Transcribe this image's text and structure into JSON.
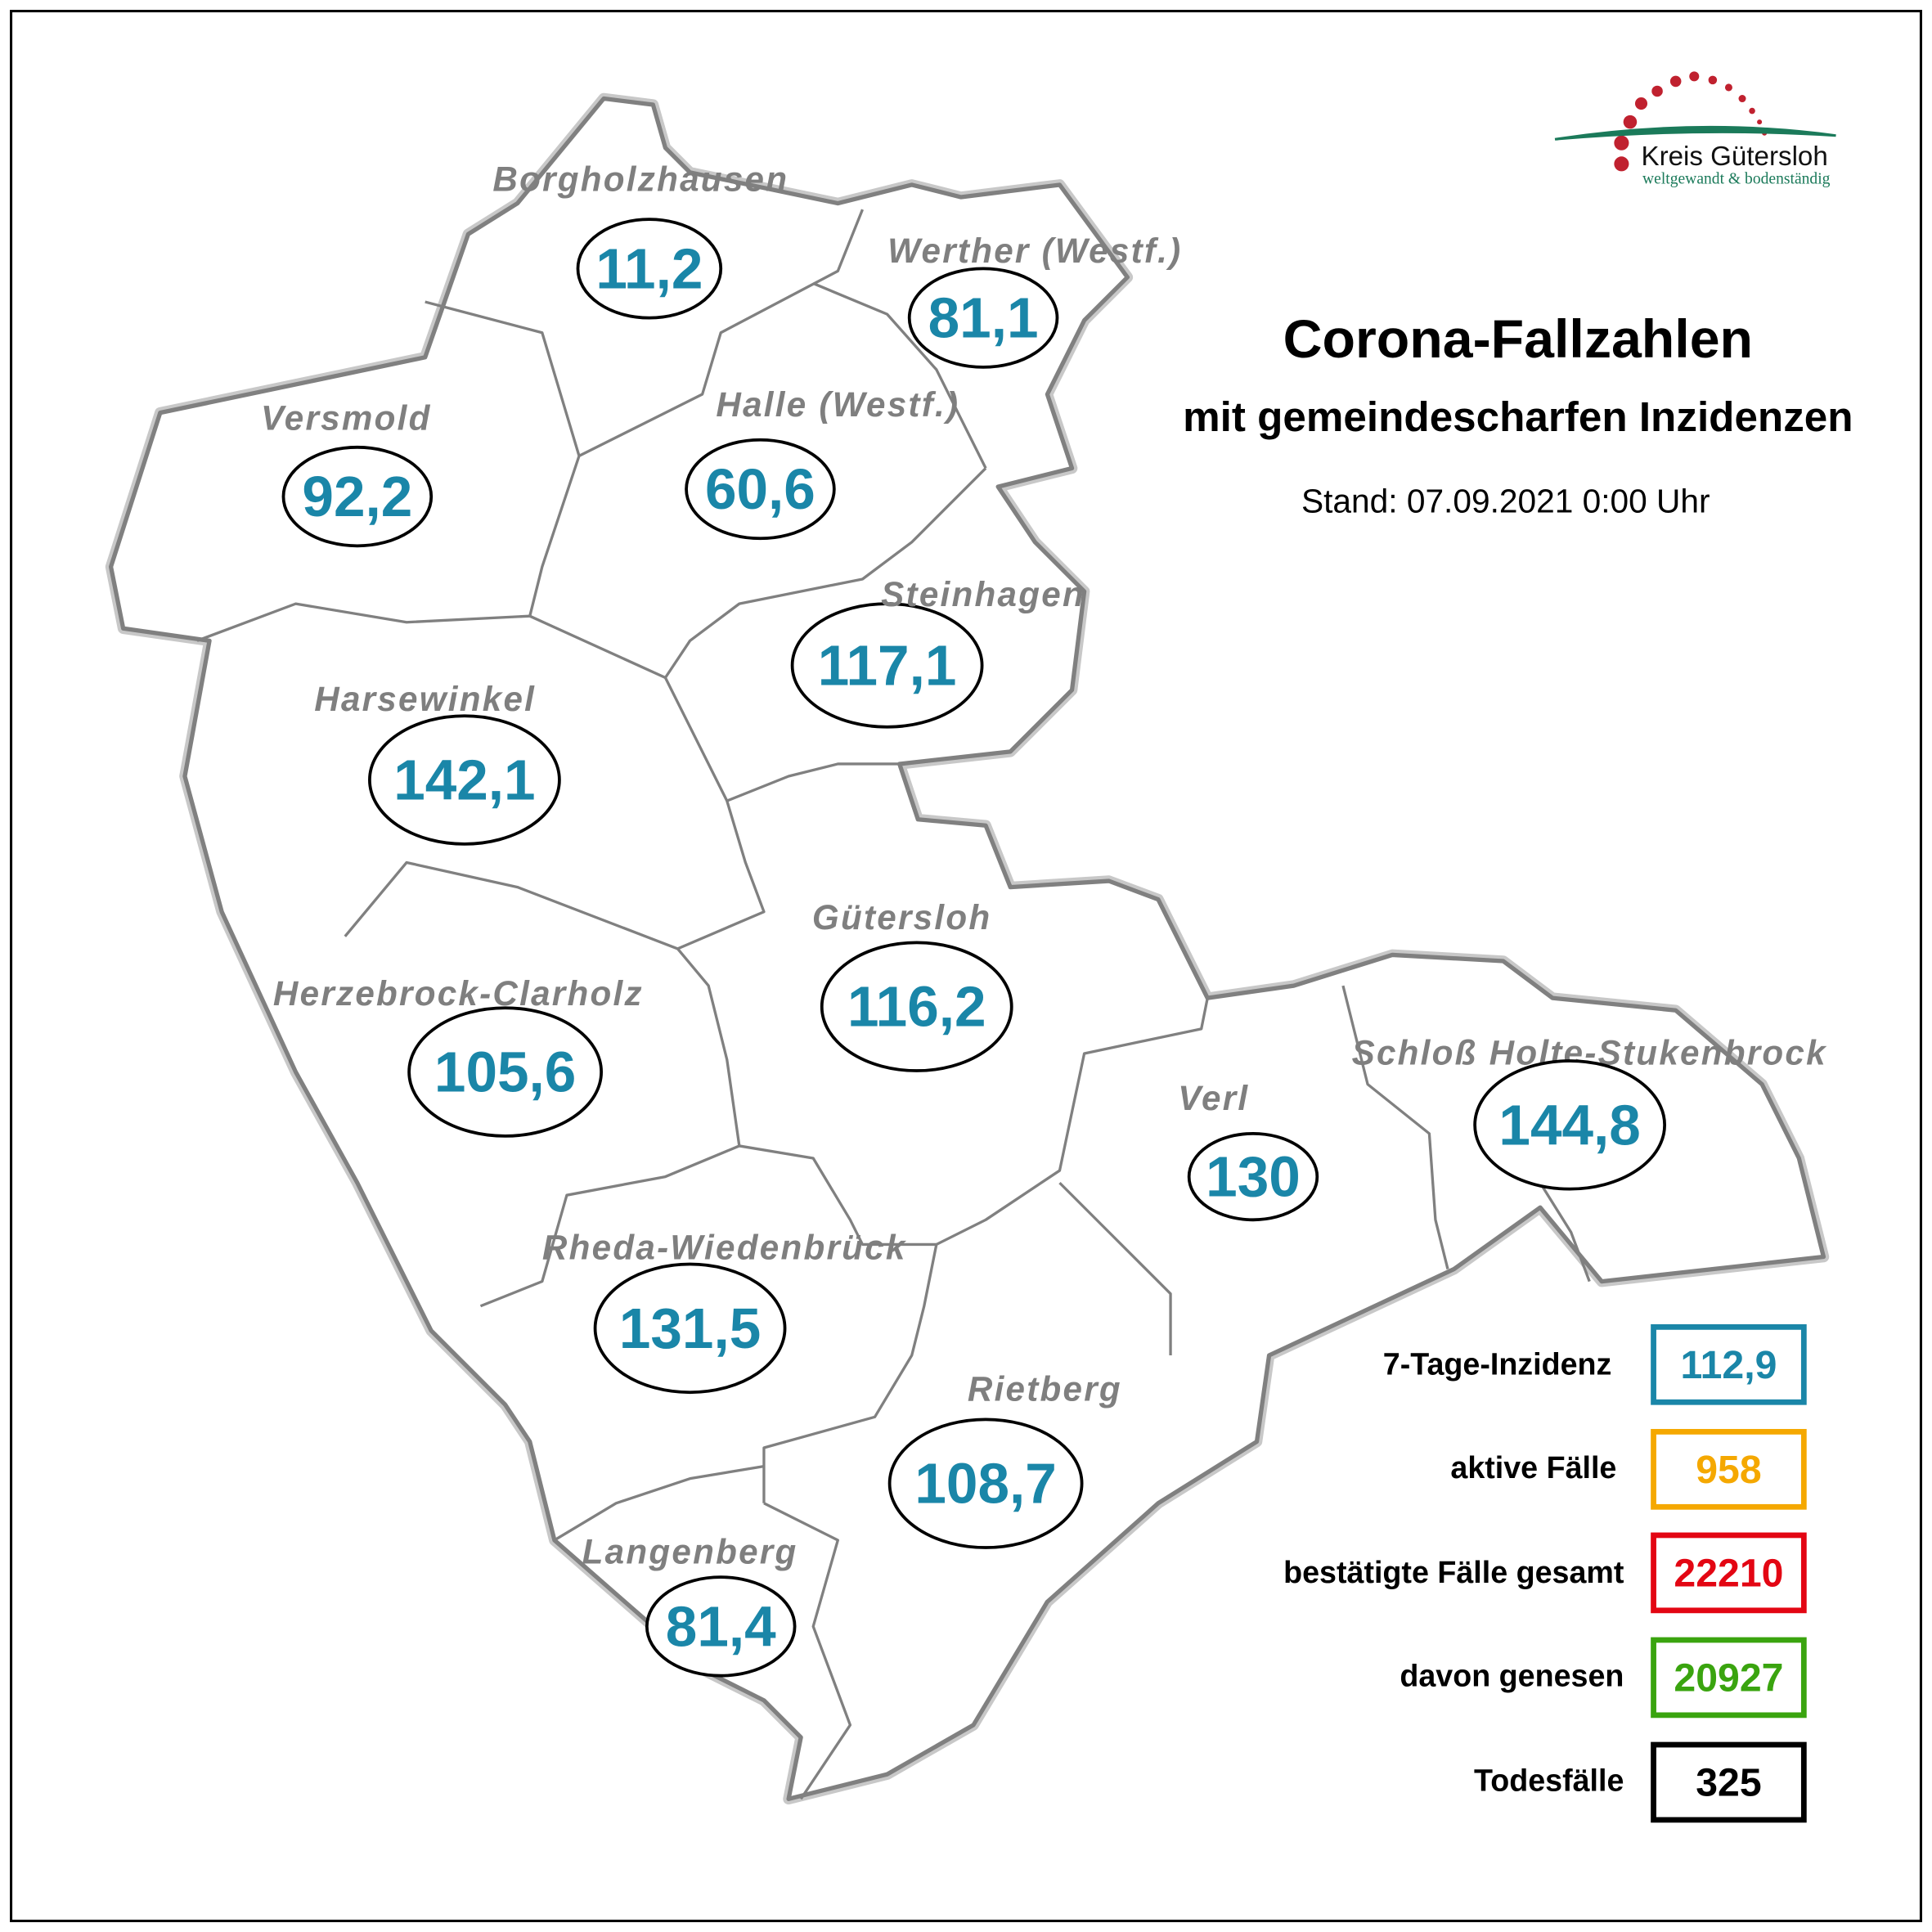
{
  "logo": {
    "name": "Kreis Gütersloh",
    "tagline": "weltgewandt & bodenständig",
    "colors": {
      "dots": "#c0212f",
      "arc": "#1b7a5a"
    }
  },
  "header": {
    "title": "Corona-Fallzahlen",
    "subtitle": "mit gemeindescharfen Inzidenzen",
    "stand": "Stand: 07.09.2021 0:00 Uhr"
  },
  "colors": {
    "incidence": "#1a86a8",
    "active": "#f5a800",
    "confirmed": "#e30613",
    "recovered": "#3aa40f",
    "deaths": "#000000",
    "muni_label": "#7f7f7f",
    "boundary": "#808080"
  },
  "municipalities": [
    {
      "name": "Borgholzhausen",
      "incidence": "11,2"
    },
    {
      "name": "Werther (Westf.)",
      "incidence": "81,1"
    },
    {
      "name": "Versmold",
      "incidence": "92,2"
    },
    {
      "name": "Halle (Westf.)",
      "incidence": "60,6"
    },
    {
      "name": "Steinhagen",
      "incidence": "117,1"
    },
    {
      "name": "Harsewinkel",
      "incidence": "142,1"
    },
    {
      "name": "Gütersloh",
      "incidence": "116,2"
    },
    {
      "name": "Herzebrock-Clarholz",
      "incidence": "105,6"
    },
    {
      "name": "Verl",
      "incidence": "130"
    },
    {
      "name": "Schloß Holte-Stukenbrock",
      "incidence": "144,8"
    },
    {
      "name": "Rheda-Wiedenbrück",
      "incidence": "131,5"
    },
    {
      "name": "Rietberg",
      "incidence": "108,7"
    },
    {
      "name": "Langenberg",
      "incidence": "81,4"
    }
  ],
  "legend": [
    {
      "label": "7-Tage-Inzidenz",
      "value": "112,9",
      "color": "#1a86a8"
    },
    {
      "label": "aktive Fälle",
      "value": "958",
      "color": "#f5a800"
    },
    {
      "label": "bestätigte Fälle gesamt",
      "value": "22210",
      "color": "#e30613"
    },
    {
      "label": "davon genesen",
      "value": "20927",
      "color": "#3aa40f"
    },
    {
      "label": "Todesfälle",
      "value": "325",
      "color": "#000000"
    }
  ]
}
